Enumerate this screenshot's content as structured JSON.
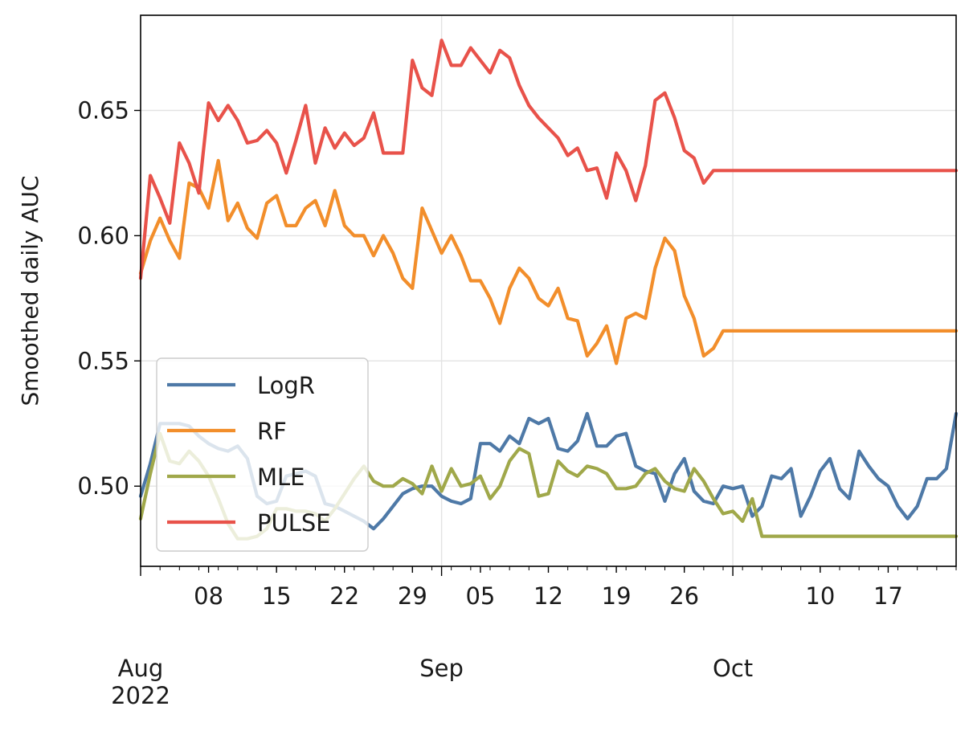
{
  "chart_data": {
    "type": "line",
    "title": "",
    "ylabel": "Smoothed daily AUC",
    "xlabel": "",
    "x_start": "2022-08-01",
    "x_end": "2022-10-24",
    "ylim": [
      0.468,
      0.688
    ],
    "yticks": [
      0.5,
      0.55,
      0.6,
      0.65
    ],
    "ytick_labels": [
      "0.50",
      "0.55",
      "0.60",
      "0.65"
    ],
    "grid": true,
    "legend_position": "lower-left",
    "major_ticks": [
      {
        "date": "2022-08-08",
        "label": "08"
      },
      {
        "date": "2022-08-15",
        "label": "15"
      },
      {
        "date": "2022-08-22",
        "label": "22"
      },
      {
        "date": "2022-08-29",
        "label": "29"
      },
      {
        "date": "2022-09-05",
        "label": "05"
      },
      {
        "date": "2022-09-12",
        "label": "12"
      },
      {
        "date": "2022-09-19",
        "label": "19"
      },
      {
        "date": "2022-09-26",
        "label": "26"
      },
      {
        "date": "2022-10-10",
        "label": "10"
      },
      {
        "date": "2022-10-17",
        "label": "17"
      }
    ],
    "month_labels": [
      {
        "date": "2022-08-01",
        "label": "Aug\n2022"
      },
      {
        "date": "2022-09-01",
        "label": "Sep"
      },
      {
        "date": "2022-10-01",
        "label": "Oct"
      }
    ],
    "dates": [
      "2022-08-01",
      "2022-08-02",
      "2022-08-03",
      "2022-08-04",
      "2022-08-05",
      "2022-08-06",
      "2022-08-07",
      "2022-08-08",
      "2022-08-09",
      "2022-08-10",
      "2022-08-11",
      "2022-08-12",
      "2022-08-13",
      "2022-08-14",
      "2022-08-15",
      "2022-08-16",
      "2022-08-17",
      "2022-08-18",
      "2022-08-19",
      "2022-08-20",
      "2022-08-21",
      "2022-08-22",
      "2022-08-23",
      "2022-08-24",
      "2022-08-25",
      "2022-08-26",
      "2022-08-27",
      "2022-08-28",
      "2022-08-29",
      "2022-08-30",
      "2022-08-31",
      "2022-09-01",
      "2022-09-02",
      "2022-09-03",
      "2022-09-04",
      "2022-09-05",
      "2022-09-06",
      "2022-09-07",
      "2022-09-08",
      "2022-09-09",
      "2022-09-10",
      "2022-09-11",
      "2022-09-12",
      "2022-09-13",
      "2022-09-14",
      "2022-09-15",
      "2022-09-16",
      "2022-09-17",
      "2022-09-18",
      "2022-09-19",
      "2022-09-20",
      "2022-09-21",
      "2022-09-22",
      "2022-09-23",
      "2022-09-24",
      "2022-09-25",
      "2022-09-26",
      "2022-09-27",
      "2022-09-28",
      "2022-09-29",
      "2022-09-30",
      "2022-10-01",
      "2022-10-02",
      "2022-10-03",
      "2022-10-04",
      "2022-10-05",
      "2022-10-06",
      "2022-10-07",
      "2022-10-08",
      "2022-10-09",
      "2022-10-10",
      "2022-10-11",
      "2022-10-12",
      "2022-10-13",
      "2022-10-14",
      "2022-10-15",
      "2022-10-16",
      "2022-10-17",
      "2022-10-18",
      "2022-10-19",
      "2022-10-20",
      "2022-10-21",
      "2022-10-22",
      "2022-10-23",
      "2022-10-24"
    ],
    "series": [
      {
        "name": "LogR",
        "color": "#4e79a7",
        "values": [
          0.496,
          0.509,
          0.525,
          0.525,
          0.525,
          0.524,
          0.52,
          0.517,
          0.515,
          0.514,
          0.516,
          0.511,
          0.496,
          0.493,
          0.494,
          0.504,
          0.505,
          0.506,
          0.504,
          0.493,
          0.492,
          0.49,
          0.488,
          0.486,
          0.483,
          0.487,
          0.492,
          0.497,
          0.499,
          0.5,
          0.5,
          0.496,
          0.494,
          0.493,
          0.495,
          0.517,
          0.517,
          0.514,
          0.52,
          0.517,
          0.527,
          0.525,
          0.527,
          0.515,
          0.514,
          0.518,
          0.529,
          0.516,
          0.516,
          0.52,
          0.521,
          0.508,
          0.506,
          0.505,
          0.494,
          0.505,
          0.511,
          0.498,
          0.494,
          0.493,
          0.5,
          0.499,
          0.5,
          0.488,
          0.492,
          0.504,
          0.503,
          0.507,
          0.488,
          0.496,
          0.506,
          0.511,
          0.499,
          0.495,
          0.514,
          0.508,
          0.503,
          0.5,
          0.492,
          0.487,
          0.492,
          0.503,
          0.503,
          0.507,
          0.529
        ]
      },
      {
        "name": "RF",
        "color": "#f28e2b",
        "values": [
          0.585,
          0.598,
          0.607,
          0.598,
          0.591,
          0.621,
          0.619,
          0.611,
          0.63,
          0.606,
          0.613,
          0.603,
          0.599,
          0.613,
          0.616,
          0.604,
          0.604,
          0.611,
          0.614,
          0.604,
          0.618,
          0.604,
          0.6,
          0.6,
          0.592,
          0.6,
          0.593,
          0.583,
          0.579,
          0.611,
          0.602,
          0.593,
          0.6,
          0.592,
          0.582,
          0.582,
          0.575,
          0.565,
          0.579,
          0.587,
          0.583,
          0.575,
          0.572,
          0.579,
          0.567,
          0.566,
          0.552,
          0.557,
          0.564,
          0.549,
          0.567,
          0.569,
          0.567,
          0.587,
          0.599,
          0.594,
          0.576,
          0.567,
          0.552,
          0.555,
          0.562,
          0.562,
          0.562,
          0.562,
          0.562,
          0.562,
          0.562,
          0.562,
          0.562,
          0.562,
          0.562,
          0.562,
          0.562,
          0.562,
          0.562,
          0.562,
          0.562,
          0.562,
          0.562,
          0.562,
          0.562,
          0.562,
          0.562,
          0.562,
          0.562
        ]
      },
      {
        "name": "MLE",
        "color": "#a0a84a",
        "values": [
          0.487,
          0.505,
          0.521,
          0.51,
          0.509,
          0.514,
          0.51,
          0.504,
          0.495,
          0.485,
          0.479,
          0.479,
          0.48,
          0.483,
          0.491,
          0.491,
          0.49,
          0.49,
          0.489,
          0.486,
          0.491,
          0.497,
          0.503,
          0.508,
          0.502,
          0.5,
          0.5,
          0.503,
          0.501,
          0.497,
          0.508,
          0.498,
          0.507,
          0.5,
          0.501,
          0.504,
          0.495,
          0.5,
          0.51,
          0.515,
          0.513,
          0.496,
          0.497,
          0.51,
          0.506,
          0.504,
          0.508,
          0.507,
          0.505,
          0.499,
          0.499,
          0.5,
          0.505,
          0.507,
          0.502,
          0.499,
          0.498,
          0.507,
          0.502,
          0.495,
          0.489,
          0.49,
          0.486,
          0.495,
          0.48,
          0.48,
          0.48,
          0.48,
          0.48,
          0.48,
          0.48,
          0.48,
          0.48,
          0.48,
          0.48,
          0.48,
          0.48,
          0.48,
          0.48,
          0.48,
          0.48,
          0.48,
          0.48,
          0.48,
          0.48
        ]
      },
      {
        "name": "PULSE",
        "color": "#e8524a",
        "values": [
          0.583,
          0.624,
          0.615,
          0.605,
          0.637,
          0.629,
          0.617,
          0.653,
          0.646,
          0.652,
          0.646,
          0.637,
          0.638,
          0.642,
          0.637,
          0.625,
          0.638,
          0.652,
          0.629,
          0.643,
          0.635,
          0.641,
          0.636,
          0.639,
          0.649,
          0.633,
          0.633,
          0.633,
          0.67,
          0.659,
          0.656,
          0.678,
          0.668,
          0.668,
          0.675,
          0.67,
          0.665,
          0.674,
          0.671,
          0.66,
          0.652,
          0.647,
          0.643,
          0.639,
          0.632,
          0.635,
          0.626,
          0.627,
          0.615,
          0.633,
          0.626,
          0.614,
          0.628,
          0.654,
          0.657,
          0.647,
          0.634,
          0.631,
          0.621,
          0.626,
          0.626,
          0.626,
          0.626,
          0.626,
          0.626,
          0.626,
          0.626,
          0.626,
          0.626,
          0.626,
          0.626,
          0.626,
          0.626,
          0.626,
          0.626,
          0.626,
          0.626,
          0.626,
          0.626,
          0.626,
          0.626,
          0.626,
          0.626,
          0.626,
          0.626
        ]
      }
    ]
  }
}
